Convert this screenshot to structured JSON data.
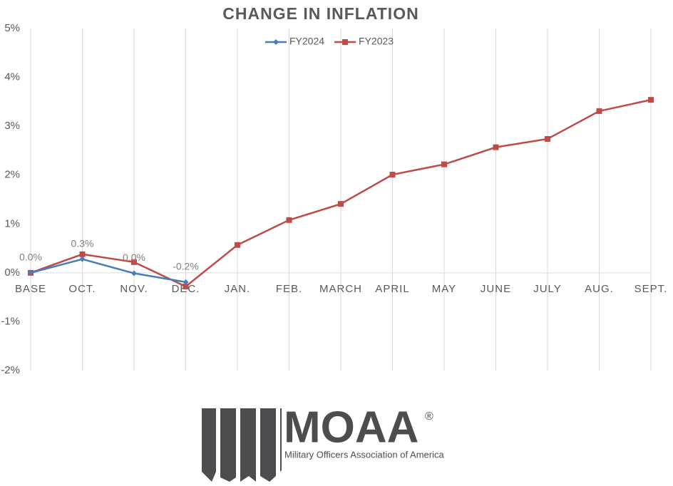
{
  "chart_data": {
    "type": "line",
    "title": "CHANGE IN INFLATION",
    "categories": [
      "BASE",
      "OCT.",
      "NOV.",
      "DEC.",
      "JAN.",
      "FEB.",
      "MARCH",
      "APRIL",
      "MAY",
      "JUNE",
      "JULY",
      "AUG.",
      "SEPT."
    ],
    "series": [
      {
        "name": "FY2024",
        "color": "#4a7ebb",
        "marker": "diamond",
        "values": [
          0,
          0.28,
          -0.01,
          -0.19,
          null,
          null,
          null,
          null,
          null,
          null,
          null,
          null,
          null
        ],
        "value_labels": [
          "0.0%",
          "0.3%",
          "0.0%",
          "-0.2%",
          null,
          null,
          null,
          null,
          null,
          null,
          null,
          null,
          null
        ]
      },
      {
        "name": "FY2023",
        "color": "#be4b48",
        "marker": "square",
        "values": [
          0,
          0.38,
          0.22,
          -0.28,
          0.57,
          1.08,
          1.41,
          2.01,
          2.22,
          2.57,
          2.74,
          3.31,
          3.54
        ]
      }
    ],
    "ylim": [
      -2,
      5
    ],
    "yticks": [
      {
        "value": -2,
        "label": "-2%"
      },
      {
        "value": -1,
        "label": "-1%"
      },
      {
        "value": 0,
        "label": "0%"
      },
      {
        "value": 1,
        "label": "1%"
      },
      {
        "value": 2,
        "label": "2%"
      },
      {
        "value": 3,
        "label": "3%"
      },
      {
        "value": 4,
        "label": "4%"
      },
      {
        "value": 5,
        "label": "5%"
      }
    ],
    "grid": "vertical",
    "legend": "top"
  },
  "logo": {
    "name": "MOAA",
    "mark": "®",
    "tagline": "Military Officers Association of America"
  }
}
